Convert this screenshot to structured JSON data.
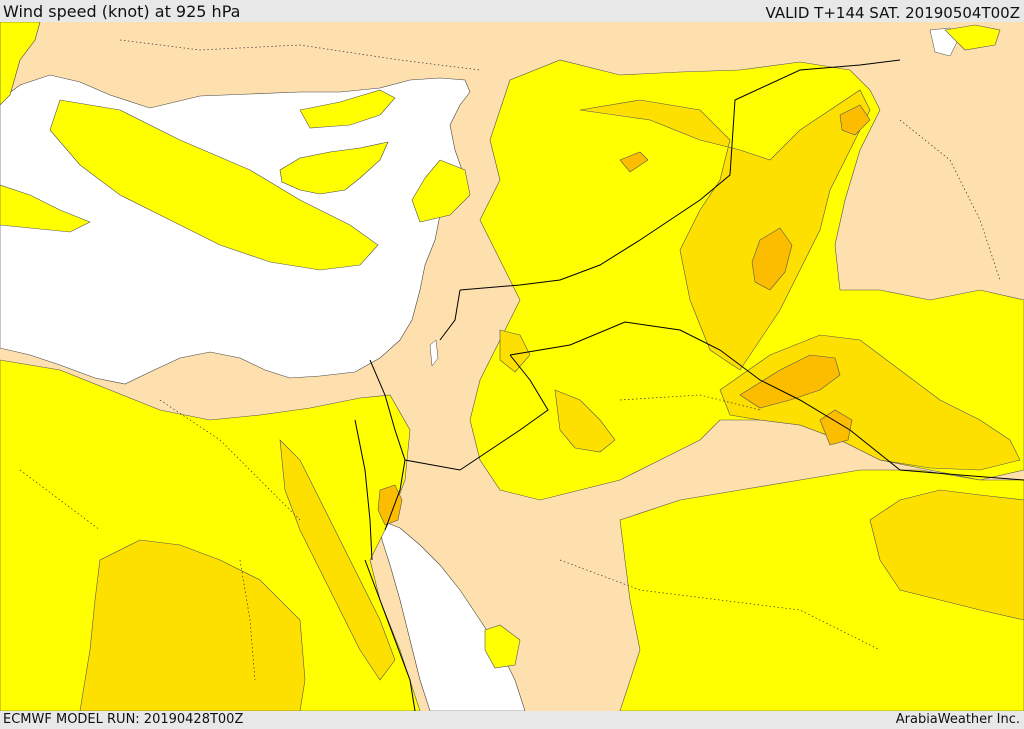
{
  "header": {
    "title": "Wind speed (knot) at 925 hPa",
    "valid": "VALID T+144 SAT. 20190504T00Z"
  },
  "footer": {
    "model_run": "ECMWF MODEL RUN: 20190428T00Z",
    "provider": "ArabiaWeather Inc."
  },
  "colors": {
    "land": "#fde0ad",
    "sea": "#ffffff",
    "wind_low": "#ffff00",
    "wind_mid": "#fde000",
    "wind_high": "#fcbd00",
    "wind_max": "#f0a020",
    "border": "#000000",
    "contour": "#555555"
  }
}
